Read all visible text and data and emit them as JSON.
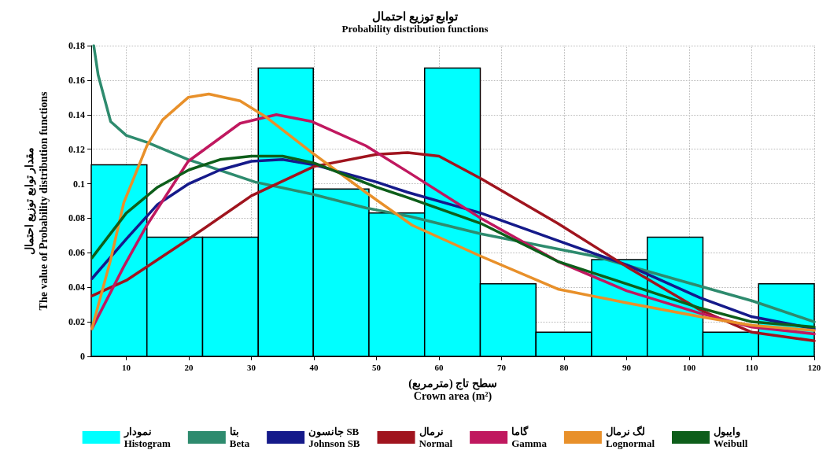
{
  "chart_data": {
    "type": "histogram",
    "title": "توابع توزیع احتمال",
    "subtitle": "Probability distribution functions",
    "xlabel": "سطح تاج (مترمربع)\nCrown area (m²)",
    "ylabel": "مقدار توابع توزیع احتمال\nThe value of Probability distribution functions",
    "xlim": [
      4.4,
      120
    ],
    "xticks": [
      10,
      20,
      30,
      40,
      50,
      60,
      70,
      80,
      90,
      100,
      110,
      120
    ],
    "ylim": [
      0,
      0.18
    ],
    "yticks": [
      0,
      0.02,
      0.04,
      0.06,
      0.08,
      0.1,
      0.12,
      0.14,
      0.16,
      0.18
    ],
    "grid": true,
    "legend": "bottom",
    "series": [
      {
        "name": "نمودار\nHistogram",
        "color": "#00ffff",
        "bins": [
          4.4,
          13.3,
          22.2,
          31.1,
          39.9,
          48.8,
          57.7,
          66.6,
          75.5,
          84.4,
          93.3,
          102.2,
          111.1,
          120
        ],
        "values": [
          0.111,
          0.069,
          0.069,
          0.167,
          0.097,
          0.083,
          0.167,
          0.042,
          0.014,
          0.056,
          0.069,
          0.014,
          0.042
        ]
      },
      {
        "name": "بتا\nBeta",
        "color": "#2e8b6e",
        "type": "line",
        "x": [
          4.8,
          5.5,
          7.5,
          10,
          13.3,
          19.9,
          30.6,
          39.7,
          48.3,
          55.4,
          66.7,
          84.9,
          97.5,
          110.2,
          120
        ],
        "values": [
          0.18,
          0.163,
          0.136,
          0.128,
          0.124,
          0.114,
          0.101,
          0.094,
          0.086,
          0.081,
          0.071,
          0.058,
          0.045,
          0.032,
          0.02
        ]
      },
      {
        "name": "جانسون SB\nJohnson SB",
        "color": "#151a8a",
        "type": "line",
        "x": [
          4.5,
          10,
          15,
          20,
          25,
          30,
          35,
          40,
          50,
          55,
          66.7,
          79,
          90,
          101.7,
          110,
          120
        ],
        "values": [
          0.045,
          0.068,
          0.088,
          0.1,
          0.108,
          0.113,
          0.114,
          0.111,
          0.101,
          0.095,
          0.083,
          0.067,
          0.053,
          0.034,
          0.023,
          0.016
        ]
      },
      {
        "name": "نرمال\nNormal",
        "color": "#a0141e",
        "type": "line",
        "x": [
          4.5,
          10,
          20,
          30,
          40,
          50,
          55,
          60,
          66.7,
          79,
          90,
          101.7,
          110,
          120
        ],
        "values": [
          0.035,
          0.044,
          0.068,
          0.093,
          0.11,
          0.117,
          0.118,
          0.116,
          0.103,
          0.077,
          0.052,
          0.027,
          0.014,
          0.009
        ]
      },
      {
        "name": "گاما\nGamma",
        "color": "#c0185f",
        "type": "line",
        "x": [
          4.5,
          9.6,
          13.3,
          19.9,
          28.2,
          34,
          39.7,
          48.3,
          55.4,
          66.7,
          79,
          90,
          101.7,
          110,
          120
        ],
        "values": [
          0.016,
          0.052,
          0.076,
          0.113,
          0.135,
          0.14,
          0.136,
          0.122,
          0.106,
          0.08,
          0.055,
          0.038,
          0.025,
          0.017,
          0.013
        ]
      },
      {
        "name": "لگ نرمال\nLognormal",
        "color": "#e8902a",
        "type": "line",
        "x": [
          4.5,
          7.5,
          9.6,
          13.3,
          15.8,
          19.9,
          23.2,
          28.2,
          32.2,
          39.7,
          48.3,
          55.7,
          66.7,
          79,
          90,
          101.7,
          110,
          120
        ],
        "values": [
          0.016,
          0.056,
          0.089,
          0.122,
          0.137,
          0.15,
          0.152,
          0.148,
          0.139,
          0.118,
          0.095,
          0.076,
          0.058,
          0.039,
          0.031,
          0.023,
          0.018,
          0.015
        ]
      },
      {
        "name": "وایبول\nWeibull",
        "color": "#0d5e1a",
        "type": "line",
        "x": [
          4.5,
          10,
          15,
          20,
          25,
          30,
          35,
          40,
          50,
          55,
          66.7,
          79,
          90,
          101.7,
          110,
          120
        ],
        "values": [
          0.057,
          0.083,
          0.098,
          0.108,
          0.114,
          0.116,
          0.116,
          0.112,
          0.098,
          0.092,
          0.077,
          0.055,
          0.042,
          0.028,
          0.02,
          0.017
        ]
      }
    ]
  }
}
